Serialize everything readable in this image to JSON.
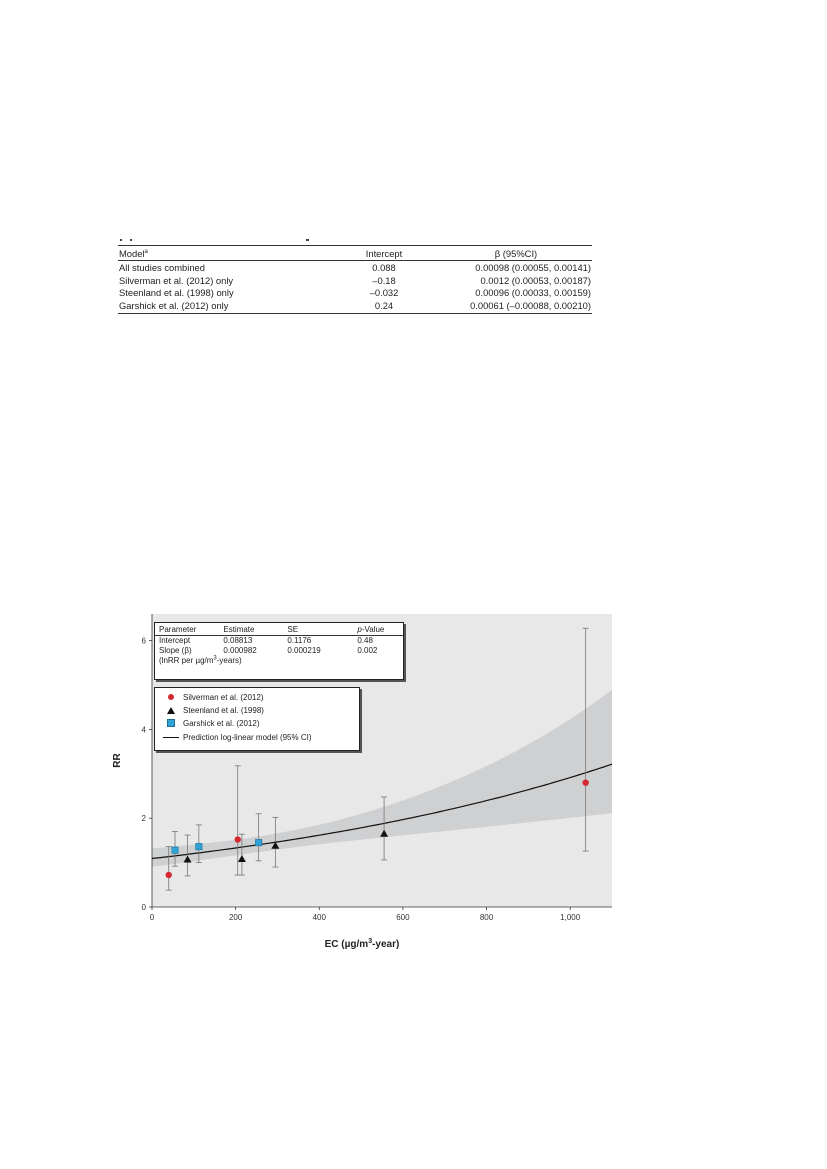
{
  "table": {
    "columns": [
      "Model",
      "Intercept",
      "β (95%CI)"
    ],
    "header_footnote": "a",
    "rows": [
      {
        "model": "All studies combined",
        "intercept": "0.088",
        "beta": "0.00098 (0.00055, 0.00141)"
      },
      {
        "model": "Silverman et al. (2012) only",
        "intercept": "–0.18",
        "beta": "0.0012 (0.00053, 0.00187)"
      },
      {
        "model": "Steenland et al. (1998) only",
        "intercept": "–0.032",
        "beta": "0.00096 (0.00033, 0.00159)"
      },
      {
        "model": "Garshick et al. (2012) only",
        "intercept": "0.24",
        "beta": "0.00061 (–0.00088, 0.00210)"
      }
    ]
  },
  "inset": {
    "headers": {
      "param": "Parameter",
      "estimate": "Estimate",
      "se": "SE",
      "p_prefix": "p",
      "p_suffix": "-Value"
    },
    "rows": [
      {
        "param": "Intercept",
        "estimate": "0.08813",
        "se": "0.1176",
        "p": "0.48"
      },
      {
        "param": "Slope (β)",
        "estimate": "0.000982",
        "se": "0.000219",
        "p": "0.002"
      }
    ],
    "units_prefix": "(lnRR per µg/m",
    "units_exp": "3",
    "units_suffix": "-years)"
  },
  "legend": {
    "silverman": "Silverman et al. (2012)",
    "steenland": "Steenland et al. (1998)",
    "garshick": "Garshick et al. (2012)",
    "model": "Prediction log-linear model (95% CI)"
  },
  "chart_data": {
    "type": "scatter",
    "xlabel": "EC (µg/m3-year)",
    "xlabel_parts": {
      "before": "EC (µg/m",
      "sup": "3",
      "after": "-year)"
    },
    "ylabel": "RR",
    "xlim": [
      0,
      1100
    ],
    "ylim": [
      0,
      6.6
    ],
    "xticks": [
      0,
      200,
      400,
      600,
      800,
      1000
    ],
    "xtick_labels": [
      "0",
      "200",
      "400",
      "600",
      "800",
      "1,000"
    ],
    "yticks": [
      0,
      2,
      4,
      6
    ],
    "ytick_labels": [
      "0",
      "2",
      "4",
      "6"
    ],
    "colors": {
      "silverman": "#d42a2f",
      "steenland": "#111111",
      "garshick": "#2fa3d6",
      "band": "#cfd0d2",
      "plot_bg": "#e8e8e9"
    },
    "series": [
      {
        "name": "Silverman et al. (2012)",
        "marker": "circle",
        "points": [
          {
            "x": 40,
            "y": 0.72,
            "lo": 0.38,
            "hi": 1.36
          },
          {
            "x": 205,
            "y": 1.52,
            "lo": 0.72,
            "hi": 3.18
          },
          {
            "x": 1037,
            "y": 2.8,
            "lo": 1.26,
            "hi": 6.28
          }
        ]
      },
      {
        "name": "Steenland et al. (1998)",
        "marker": "triangle",
        "points": [
          {
            "x": 85,
            "y": 1.07,
            "lo": 0.7,
            "hi": 1.62
          },
          {
            "x": 215,
            "y": 1.08,
            "lo": 0.72,
            "hi": 1.64
          },
          {
            "x": 295,
            "y": 1.38,
            "lo": 0.9,
            "hi": 2.02
          },
          {
            "x": 555,
            "y": 1.65,
            "lo": 1.06,
            "hi": 2.48
          }
        ]
      },
      {
        "name": "Garshick et al. (2012)",
        "marker": "square",
        "points": [
          {
            "x": 55,
            "y": 1.28,
            "lo": 0.92,
            "hi": 1.7
          },
          {
            "x": 112,
            "y": 1.36,
            "lo": 1.0,
            "hi": 1.85
          },
          {
            "x": 255,
            "y": 1.45,
            "lo": 1.04,
            "hi": 2.1
          }
        ]
      }
    ],
    "model": {
      "name": "Prediction log-linear model (95% CI)",
      "intercept": 0.08813,
      "slope": 0.000982,
      "se_intercept": 0.1176,
      "se_slope": 0.000219
    }
  }
}
